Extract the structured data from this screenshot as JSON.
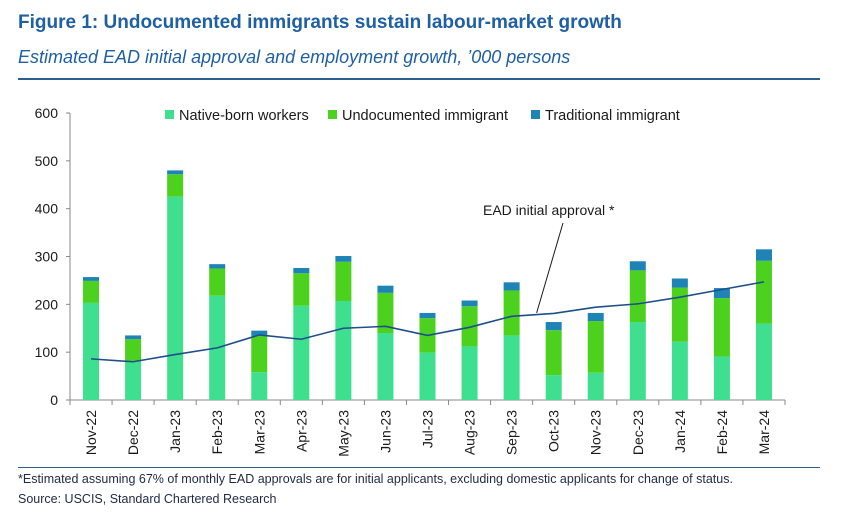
{
  "figure": {
    "title": "Figure 1: Undocumented immigrants sustain labour-market growth",
    "subtitle": "Estimated EAD initial approval and employment growth, ’000 persons",
    "footnote": "*Estimated assuming 67% of monthly EAD approvals are for initial applicants, excluding domestic applicants for change of status.",
    "source": "Source: USCIS, Standard Chartered Research"
  },
  "chart_data": {
    "type": "bar",
    "stacked": true,
    "categories": [
      "Nov-22",
      "Dec-22",
      "Jan-23",
      "Feb-23",
      "Mar-23",
      "Apr-23",
      "May-23",
      "Jun-23",
      "Jul-23",
      "Aug-23",
      "Sep-23",
      "Oct-23",
      "Nov-23",
      "Dec-23",
      "Jan-24",
      "Feb-24",
      "Mar-24"
    ],
    "series": [
      {
        "name": "Native-born workers",
        "color": "#3ee08f",
        "values": [
          203,
          82,
          425,
          218,
          58,
          197,
          207,
          140,
          99,
          112,
          135,
          52,
          57,
          163,
          122,
          91,
          160
        ]
      },
      {
        "name": "Undocumented immigrant",
        "color": "#4cd21e",
        "values": [
          46,
          45,
          47,
          57,
          76,
          68,
          82,
          84,
          72,
          84,
          94,
          94,
          108,
          108,
          113,
          122,
          131
        ]
      },
      {
        "name": "Traditional immigrant",
        "color": "#1d84b5",
        "values": [
          8,
          8,
          8,
          9,
          11,
          11,
          12,
          15,
          11,
          12,
          17,
          17,
          17,
          19,
          19,
          21,
          24
        ]
      }
    ],
    "line": {
      "name": "EAD initial approval *",
      "color": "#1f4f8a",
      "values": [
        86,
        80,
        95,
        109,
        136,
        127,
        150,
        154,
        135,
        152,
        175,
        181,
        194,
        201,
        215,
        231,
        247
      ]
    },
    "ylim": [
      0,
      600
    ],
    "yticks": [
      0,
      100,
      200,
      300,
      400,
      500,
      600
    ],
    "legend_position": "top"
  }
}
